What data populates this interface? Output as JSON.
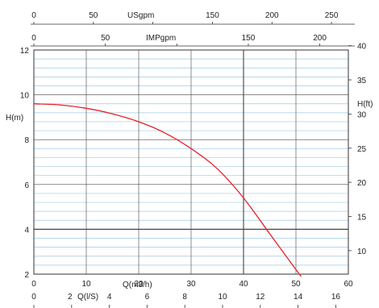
{
  "chart_data": {
    "type": "line",
    "xlabel": "Q(m3/h)",
    "ylabel": "H(m)",
    "xlim": [
      0,
      60
    ],
    "ylim": [
      2,
      12
    ],
    "x_ticks": [
      0,
      10,
      20,
      30,
      40,
      50,
      60
    ],
    "y_ticks": [
      2,
      4,
      6,
      8,
      10,
      12
    ],
    "grid": true,
    "minor_grid_step_y": 0.4,
    "series": [
      {
        "x": [
          0,
          5,
          10,
          15,
          20,
          25,
          30,
          35,
          40,
          45,
          50,
          51
        ],
        "y": [
          9.6,
          9.55,
          9.4,
          9.15,
          8.8,
          8.3,
          7.6,
          6.7,
          5.4,
          3.8,
          2.2,
          1.9
        ],
        "color": "#e8202a"
      }
    ],
    "secondary_axes": {
      "usgpm": {
        "label": "USgpm",
        "ticks": [
          0,
          50,
          100,
          150,
          200,
          250
        ],
        "tick_labels": [
          "0",
          "50",
          "",
          "150",
          "200",
          "250"
        ]
      },
      "impgpm": {
        "label": "IMPgpm",
        "ticks": [
          0,
          50,
          100,
          150,
          200
        ],
        "tick_labels": [
          "0",
          "50",
          "",
          "150",
          "200"
        ]
      },
      "h_ft": {
        "label": "H(ft)",
        "ticks": [
          10,
          15,
          20,
          25,
          30,
          35,
          40
        ],
        "tick_labels": [
          "10",
          "15",
          "20",
          "25",
          "30",
          "35",
          "40"
        ]
      },
      "q_ls": {
        "label": "Q(l/S)",
        "ticks": [
          0,
          2,
          4,
          6,
          8,
          10,
          12,
          14,
          16
        ],
        "tick_labels": [
          "0",
          "2",
          "4",
          "6",
          "8",
          "10",
          "12",
          "14",
          "16"
        ]
      }
    },
    "colors": {
      "curve": "#e8202a",
      "major_grid": "#444444",
      "minor_grid": "#9ecbe3",
      "frame": "#333333"
    }
  }
}
